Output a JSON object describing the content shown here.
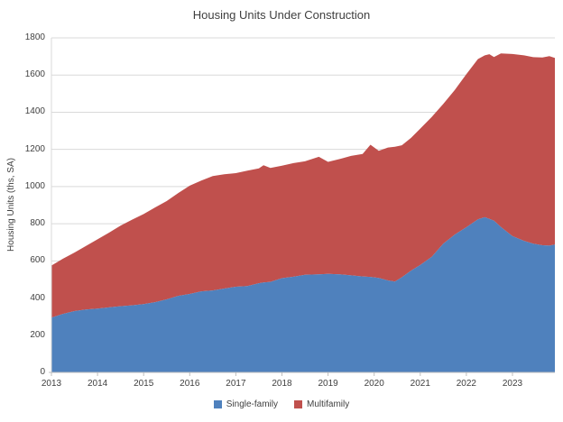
{
  "title": "Housing Units Under Construction",
  "y_axis": {
    "label": "Housing Units (ths, SA)",
    "ticks": [
      0,
      200,
      400,
      600,
      800,
      1000,
      1200,
      1400,
      1600,
      1800
    ]
  },
  "x_axis": {
    "ticks": [
      2013,
      2014,
      2015,
      2016,
      2017,
      2018,
      2019,
      2020,
      2021,
      2022,
      2023
    ]
  },
  "colors": {
    "single_family": "#4F81BD",
    "multifamily": "#C0504D",
    "gridline": "#D9D9D9",
    "axis_line": "#BFBFBF",
    "text": "#3F3F3F",
    "background": "#FFFFFF"
  },
  "chart_data": {
    "type": "area",
    "stacked": true,
    "title": "Housing Units Under Construction",
    "xlabel": "",
    "ylabel": "Housing Units (ths, SA)",
    "ylim": [
      0,
      1800
    ],
    "xlim": [
      2013,
      2023.92
    ],
    "grid": "horizontal",
    "legend_position": "bottom",
    "x_unit": "year (monthly series, fractional years)",
    "x": [
      2013.0,
      2013.25,
      2013.5,
      2013.75,
      2014.0,
      2014.25,
      2014.5,
      2014.75,
      2015.0,
      2015.25,
      2015.5,
      2015.75,
      2016.0,
      2016.25,
      2016.5,
      2016.75,
      2017.0,
      2017.25,
      2017.5,
      2017.6,
      2017.75,
      2018.0,
      2018.25,
      2018.5,
      2018.8,
      2019.0,
      2019.25,
      2019.5,
      2019.75,
      2019.92,
      2020.1,
      2020.3,
      2020.45,
      2020.6,
      2020.8,
      2021.0,
      2021.25,
      2021.5,
      2021.75,
      2022.0,
      2022.25,
      2022.4,
      2022.5,
      2022.6,
      2022.75,
      2023.0,
      2023.25,
      2023.45,
      2023.65,
      2023.8,
      2023.92
    ],
    "series": [
      {
        "name": "Single-family",
        "color": "#4F81BD",
        "values": [
          295,
          315,
          330,
          338,
          343,
          350,
          356,
          361,
          368,
          378,
          393,
          412,
          422,
          436,
          441,
          451,
          461,
          465,
          480,
          484,
          487,
          507,
          515,
          525,
          528,
          530,
          528,
          522,
          516,
          514,
          508,
          495,
          489,
          512,
          548,
          578,
          622,
          693,
          742,
          781,
          824,
          835,
          826,
          816,
          782,
          733,
          708,
          693,
          684,
          682,
          688
        ]
      },
      {
        "name": "Multifamily",
        "color": "#C0504D",
        "values": [
          280,
          297,
          315,
          342,
          373,
          402,
          434,
          461,
          484,
          510,
          529,
          553,
          583,
          596,
          615,
          615,
          611,
          621,
          618,
          631,
          613,
          605,
          611,
          611,
          632,
          603,
          620,
          643,
          659,
          711,
          684,
          715,
          725,
          710,
          714,
          734,
          753,
          752,
          778,
          824,
          862,
          871,
          886,
          881,
          934,
          980,
          998,
          1003,
          1010,
          1020,
          1004
        ]
      }
    ]
  }
}
